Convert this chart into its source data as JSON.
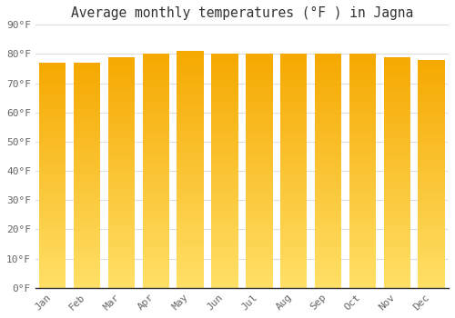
{
  "title": "Average monthly temperatures (°F ) in Jagna",
  "months": [
    "Jan",
    "Feb",
    "Mar",
    "Apr",
    "May",
    "Jun",
    "Jul",
    "Aug",
    "Sep",
    "Oct",
    "Nov",
    "Dec"
  ],
  "values": [
    77,
    77,
    79,
    80,
    81,
    80,
    80,
    80,
    80,
    80,
    79,
    78
  ],
  "bar_color_top": "#F5A800",
  "bar_color_bottom": "#FFD966",
  "background_color": "#FFFFFF",
  "plot_bg_color": "#FFFFFF",
  "grid_color": "#DDDDDD",
  "ylim": [
    0,
    90
  ],
  "yticks": [
    0,
    10,
    20,
    30,
    40,
    50,
    60,
    70,
    80,
    90
  ],
  "title_fontsize": 10.5,
  "tick_fontsize": 8,
  "font_family": "monospace",
  "bar_width": 0.78,
  "n_grad": 200
}
